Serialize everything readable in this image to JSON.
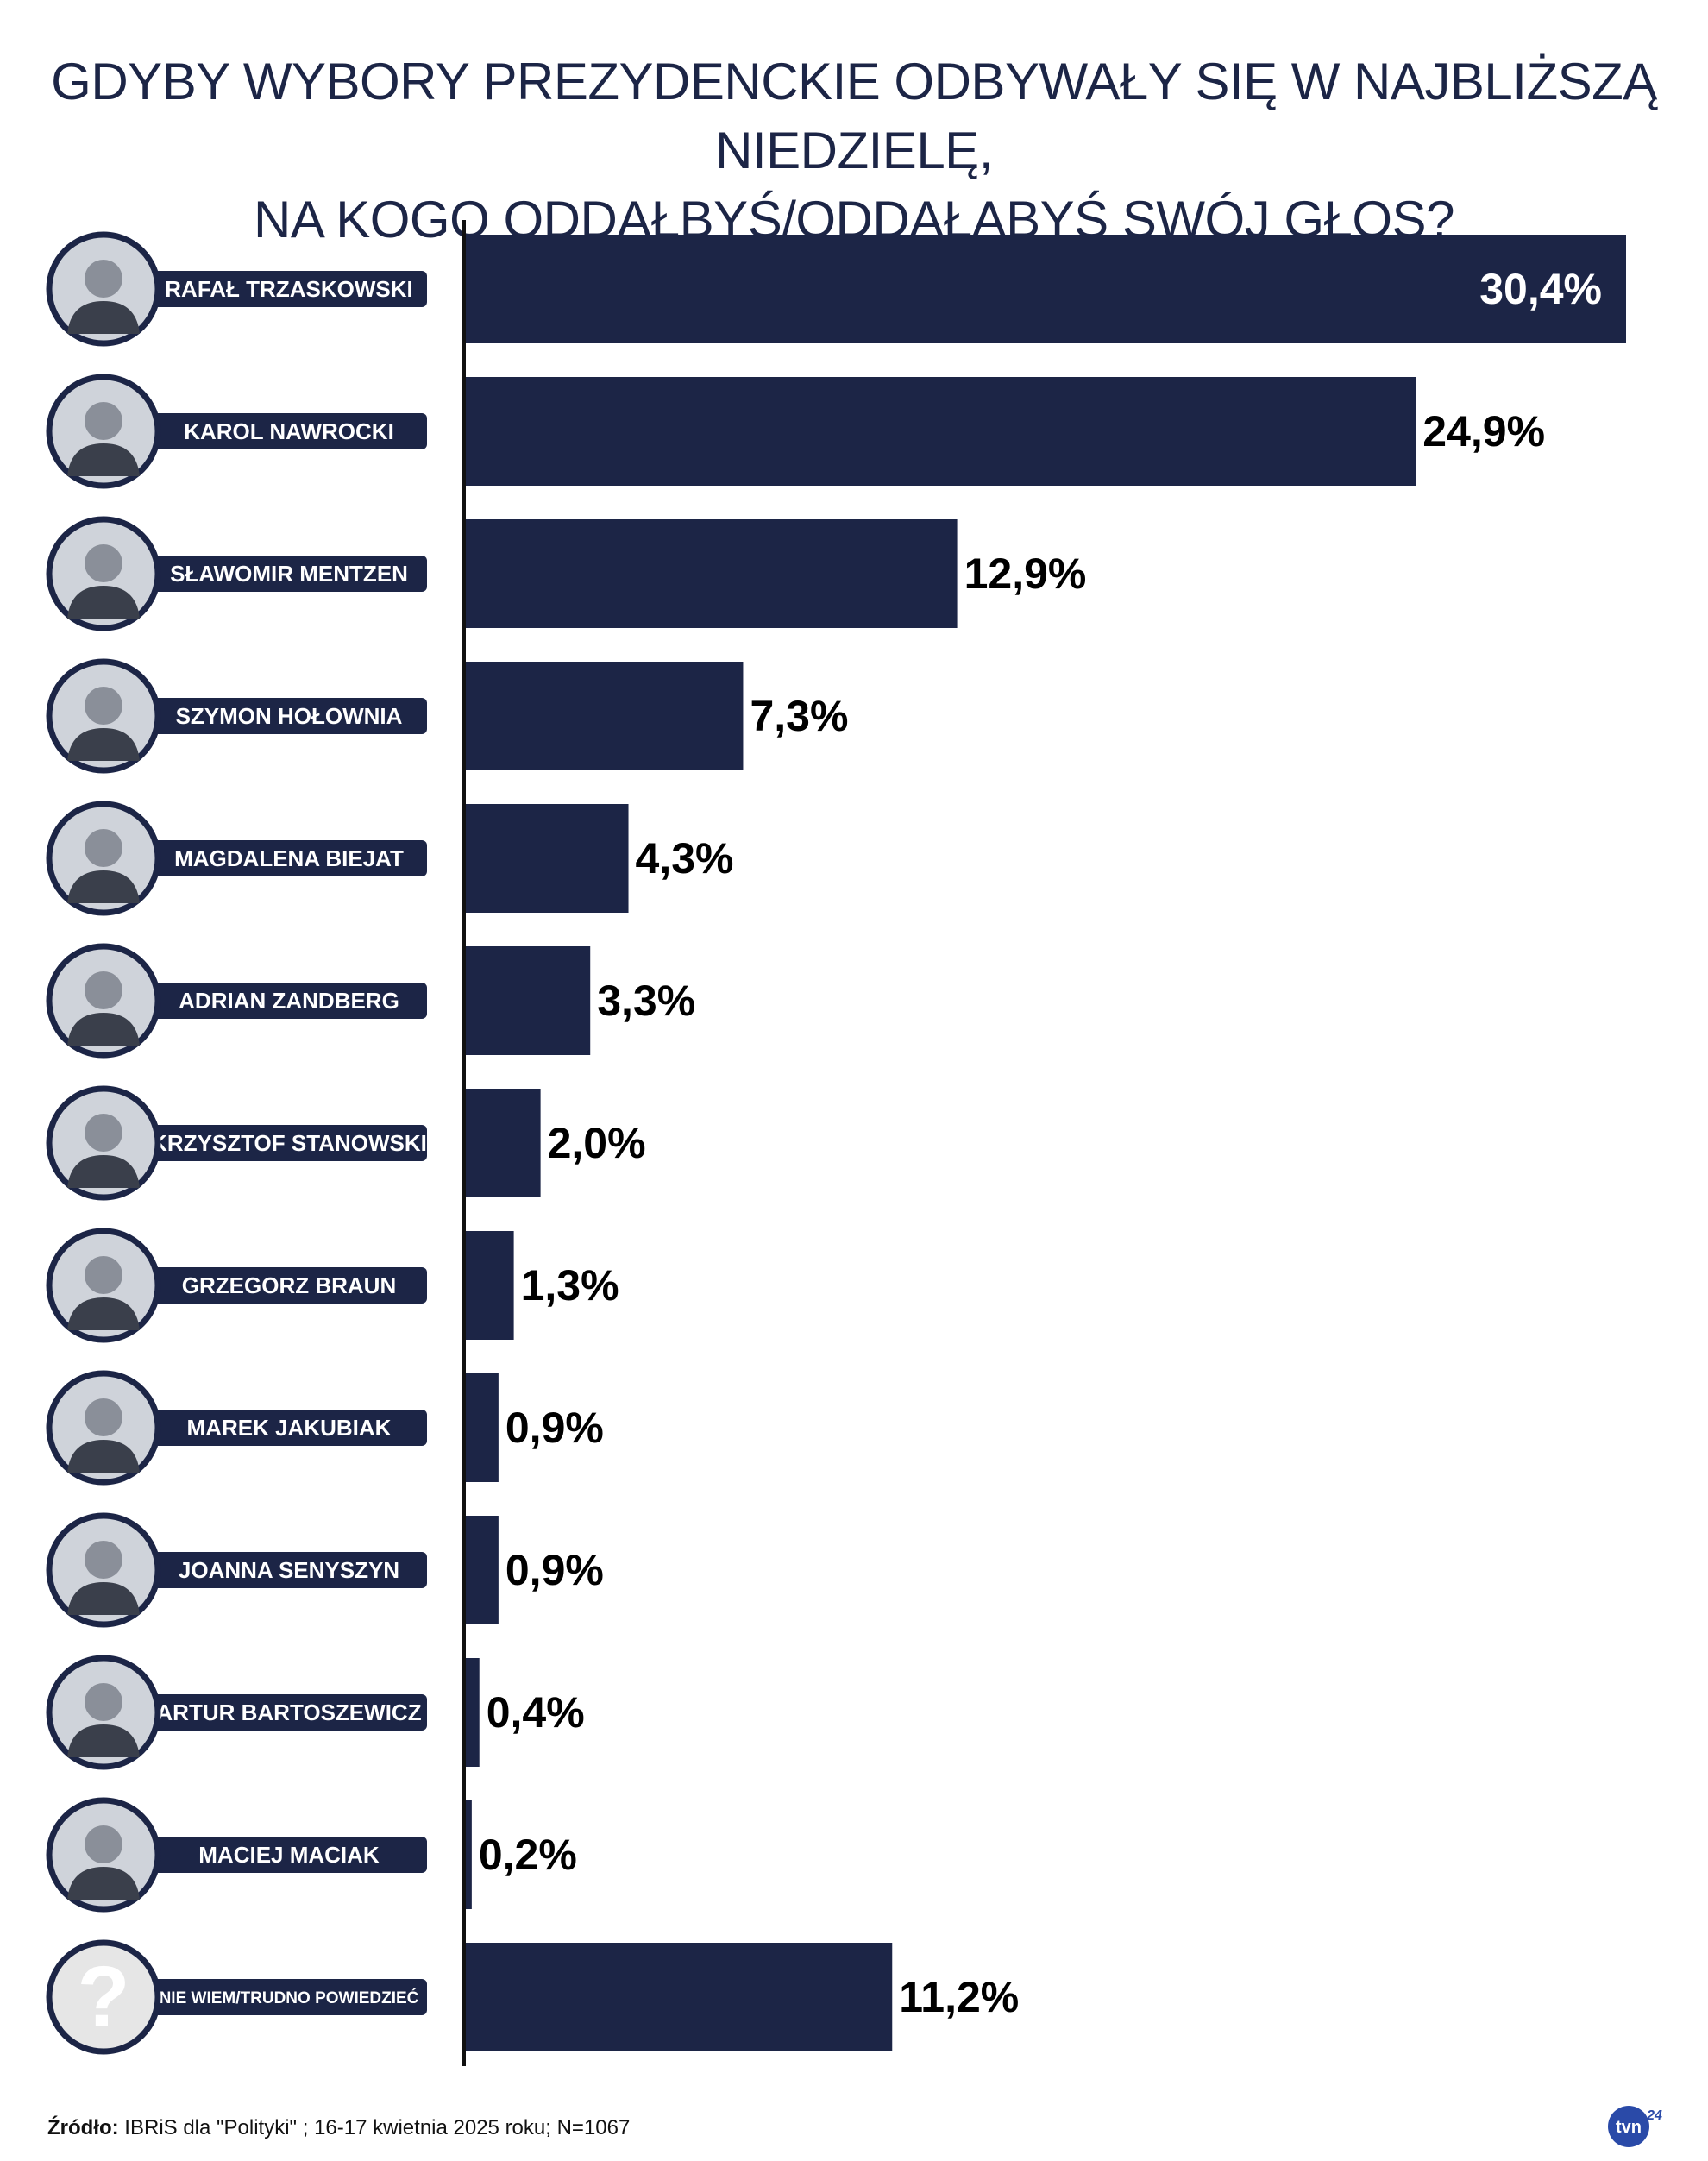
{
  "title": {
    "line1": "GDYBY WYBORY PREZYDENCKIE ODBYWAŁY SIĘ W NAJBLIŻSZĄ NIEDZIELĘ,",
    "line2": "NA KOGO ODDAŁBYŚ/ODDAŁABYŚ SWÓJ GŁOS?"
  },
  "colors": {
    "bar": "#1c2546",
    "label_bg": "#1c2546",
    "label_text": "#ffffff",
    "value_text": "#000000",
    "value_text_inside": "#ffffff",
    "axis": "#111111"
  },
  "chart_data": {
    "type": "bar",
    "orientation": "horizontal",
    "categories": [
      "RAFAŁ TRZASKOWSKI",
      "KAROL NAWROCKI",
      "SŁAWOMIR MENTZEN",
      "SZYMON HOŁOWNIA",
      "MAGDALENA BIEJAT",
      "ADRIAN ZANDBERG",
      "KRZYSZTOF STANOWSKI",
      "GRZEGORZ BRAUN",
      "MAREK JAKUBIAK",
      "JOANNA SENYSZYN",
      "ARTUR BARTOSZEWICZ",
      "MACIEJ MACIAK",
      "NIE WIEM/TRUDNO POWIEDZIEĆ"
    ],
    "values": [
      30.4,
      24.9,
      12.9,
      7.3,
      4.3,
      3.3,
      2.0,
      1.3,
      0.9,
      0.9,
      0.4,
      0.2,
      11.2
    ],
    "value_labels": [
      "30,4%",
      "24,9%",
      "12,9%",
      "7,3%",
      "4,3%",
      "3,3%",
      "2,0%",
      "1,3%",
      "0,9%",
      "0,9%",
      "0,4%",
      "0,2%",
      "11,2%"
    ],
    "avatar_icons": [
      "portrait-icon",
      "portrait-icon",
      "portrait-icon",
      "portrait-icon",
      "portrait-icon",
      "portrait-icon",
      "portrait-icon",
      "portrait-icon",
      "portrait-icon",
      "portrait-icon",
      "portrait-icon",
      "portrait-icon",
      "question-mark-icon"
    ],
    "xlim": [
      0,
      30.4
    ],
    "grid": false,
    "legend": "none"
  },
  "footer": {
    "source_label": "Źródło:",
    "source_text": " IBRiS dla \"Polityki\" ; 16-17 kwietnia 2025 roku; N=1067"
  },
  "logo": {
    "text": "tvn",
    "sub": "24"
  }
}
